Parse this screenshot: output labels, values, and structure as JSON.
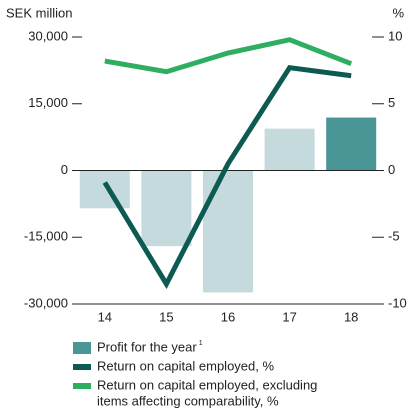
{
  "chart_data": {
    "type": "bar_line",
    "y_label": "SEK million",
    "y2_label": "%",
    "categories": [
      "14",
      "15",
      "16",
      "17",
      "18"
    ],
    "ylim": [
      -30000,
      30000
    ],
    "yticks": [
      {
        "value": 30000,
        "label": "30,000"
      },
      {
        "value": 15000,
        "label": "15,000"
      },
      0,
      {
        "value": -15000,
        "label": "-15,000"
      },
      {
        "value": -30000,
        "label": "-30,000"
      }
    ],
    "y2lim": [
      -10,
      10
    ],
    "y2ticks": [
      10,
      5,
      0,
      -5,
      -10
    ],
    "series": [
      {
        "name": "Profit for the year",
        "footnote_marker": "1",
        "kind": "bar",
        "color": "#4a9595",
        "colors": [
          "#c5dadd",
          "#c5dadd",
          "#c5dadd",
          "#c5dadd",
          "#4a9595"
        ],
        "values": [
          -8500,
          -17000,
          -27400,
          9400,
          11900
        ]
      },
      {
        "name": "Return on capital employed, %",
        "kind": "line",
        "axis": "y2",
        "color": "#0d5a52",
        "values": [
          -0.9,
          -8.5,
          0.5,
          7.7,
          7.1
        ]
      },
      {
        "name": "Return on capital employed, excluding items affecting comparability, %",
        "name_lines": [
          "Return on capital employed, excluding",
          "items affecting comparability, %"
        ],
        "kind": "line",
        "axis": "y2",
        "color": "#2fae62",
        "values": [
          8.2,
          7.4,
          8.8,
          9.8,
          8.0
        ]
      }
    ]
  }
}
